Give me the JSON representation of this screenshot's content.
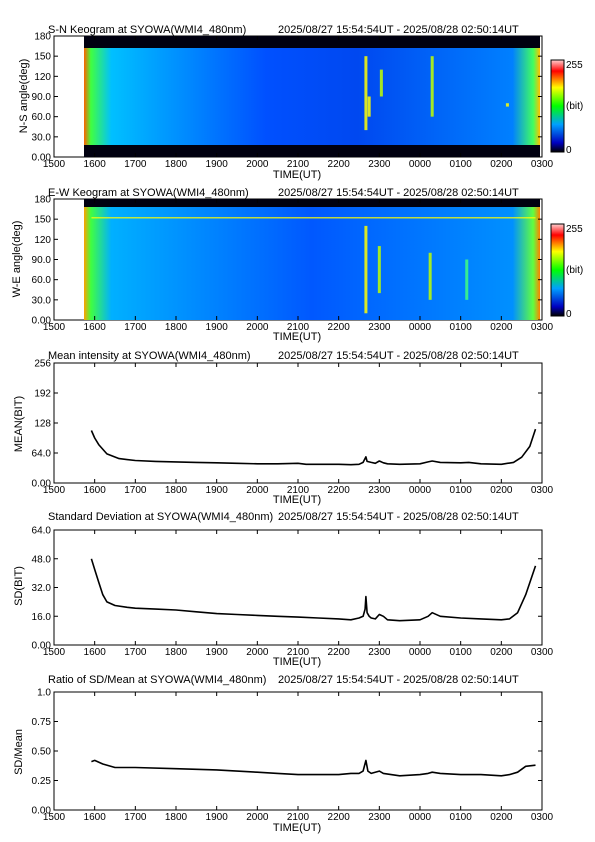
{
  "page": {
    "time_range": "2025/08/27 15:54:54UT - 2025/08/28 02:50:14UT",
    "colors": {
      "axis": "#000000",
      "line": "#000000",
      "keo_background": "#0030e0",
      "keo_dark": "#000010"
    }
  },
  "x_axis": {
    "ticks": [
      "1500",
      "1600",
      "1700",
      "1800",
      "1900",
      "2000",
      "2100",
      "2200",
      "2300",
      "0000",
      "0100",
      "0200",
      "0300"
    ],
    "label": "TIME(UT)"
  },
  "colorbar": {
    "max_label": "255",
    "unit_label": "(bit)",
    "min_label": "0"
  },
  "chart_data": [
    {
      "id": "sn",
      "type": "heatmap",
      "title": "S-N Keogram at SYOWA(WMI4_480nm)",
      "ylabel": "N-S angle(deg)",
      "yticks": [
        "0.00",
        "30.0",
        "60.0",
        "90.0",
        "120",
        "150",
        "180"
      ],
      "ylim": [
        0,
        180
      ],
      "colorscale": [
        "#000080",
        "#0000ff",
        "#00a0ff",
        "#00ff00",
        "#ffff00",
        "#ff0000",
        "#ffffff"
      ],
      "background_level": 0.3,
      "features": [
        {
          "x": 22.67,
          "y0": 40,
          "y1": 150,
          "level": 0.75
        },
        {
          "x": 22.75,
          "y0": 60,
          "y1": 90,
          "level": 0.85
        },
        {
          "x": 23.05,
          "y0": 90,
          "y1": 130,
          "level": 0.65
        },
        {
          "x": 24.3,
          "y0": 60,
          "y1": 150,
          "level": 0.6
        },
        {
          "x": 26.15,
          "y0": 75,
          "y1": 80,
          "level": 0.8
        }
      ]
    },
    {
      "id": "ew",
      "type": "heatmap",
      "title": "E-W Keogram at SYOWA(WMI4_480nm)",
      "ylabel": "W-E angle(deg)",
      "yticks": [
        "0.00",
        "30.0",
        "60.0",
        "90.0",
        "120",
        "150",
        "180"
      ],
      "ylim": [
        0,
        180
      ],
      "colorscale": [
        "#000080",
        "#0000ff",
        "#00a0ff",
        "#00ff00",
        "#ffff00",
        "#ff0000",
        "#ffffff"
      ],
      "background_level": 0.35,
      "features": [
        {
          "x": 22.67,
          "y0": 10,
          "y1": 140,
          "level": 0.8
        },
        {
          "x": 23.0,
          "y0": 40,
          "y1": 110,
          "level": 0.65
        },
        {
          "x": 24.25,
          "y0": 30,
          "y1": 100,
          "level": 0.6
        },
        {
          "x": 25.15,
          "y0": 30,
          "y1": 90,
          "level": 0.55
        },
        {
          "x": 16.0,
          "y0": 152,
          "y1": 154,
          "level": 0.85
        }
      ]
    },
    {
      "id": "mean",
      "type": "line",
      "title": "Mean intensity at SYOWA(WMI4_480nm)",
      "ylabel": "MEAN(BIT)",
      "yticks": [
        "0.00",
        "64.0",
        "128",
        "192",
        "256"
      ],
      "ylim": [
        0,
        256
      ],
      "x": [
        15.92,
        16.0,
        16.1,
        16.3,
        16.6,
        17.0,
        17.5,
        18.0,
        18.5,
        19.0,
        19.5,
        20.0,
        20.5,
        21.0,
        21.2,
        21.5,
        22.0,
        22.3,
        22.5,
        22.6,
        22.67,
        22.7,
        22.8,
        22.9,
        23.0,
        23.1,
        23.2,
        23.5,
        24.0,
        24.2,
        24.3,
        24.5,
        25.0,
        25.2,
        25.5,
        26.0,
        26.3,
        26.5,
        26.7,
        26.84
      ],
      "y": [
        112,
        96,
        82,
        62,
        52,
        48,
        46,
        45,
        44,
        43,
        42,
        41,
        41,
        42,
        40,
        40,
        40,
        39,
        40,
        44,
        56,
        46,
        44,
        42,
        47,
        43,
        41,
        40,
        41,
        45,
        47,
        44,
        43,
        44,
        41,
        40,
        44,
        55,
        78,
        115
      ]
    },
    {
      "id": "sd",
      "type": "line",
      "title": "Standard Deviation at SYOWA(WMI4_480nm)",
      "ylabel": "SD(BIT)",
      "yticks": [
        "0.00",
        "16.0",
        "32.0",
        "48.0",
        "64.0"
      ],
      "ylim": [
        0,
        64
      ],
      "x": [
        15.92,
        16.0,
        16.1,
        16.2,
        16.3,
        16.5,
        16.8,
        17.0,
        17.5,
        18.0,
        18.5,
        19.0,
        19.5,
        20.0,
        20.5,
        21.0,
        21.5,
        22.0,
        22.3,
        22.5,
        22.6,
        22.65,
        22.67,
        22.7,
        22.75,
        22.8,
        22.9,
        23.0,
        23.1,
        23.2,
        23.5,
        24.0,
        24.2,
        24.3,
        24.5,
        25.0,
        25.5,
        26.0,
        26.2,
        26.4,
        26.6,
        26.84
      ],
      "y": [
        48,
        42,
        35,
        28,
        24,
        22,
        21,
        20.5,
        20,
        19.5,
        18.5,
        17.5,
        17,
        16.5,
        16,
        15.5,
        15,
        14.5,
        14,
        15,
        16,
        20,
        27,
        18,
        16,
        15,
        14.5,
        17,
        16,
        14,
        13.5,
        14,
        16,
        18,
        16,
        15,
        14.5,
        14,
        14.5,
        18,
        28,
        44
      ]
    },
    {
      "id": "ratio",
      "type": "line",
      "title": "Ratio of SD/Mean at SYOWA(WMI4_480nm)",
      "ylabel": "SD/Mean",
      "yticks": [
        "0.00",
        "0.25",
        "0.50",
        "0.75",
        "1.0"
      ],
      "ylim": [
        0,
        1
      ],
      "x": [
        15.92,
        16.0,
        16.2,
        16.5,
        17.0,
        18.0,
        19.0,
        19.5,
        20.0,
        20.5,
        21.0,
        21.5,
        22.0,
        22.3,
        22.5,
        22.6,
        22.67,
        22.72,
        22.8,
        23.0,
        23.1,
        23.5,
        24.0,
        24.2,
        24.3,
        24.5,
        25.0,
        25.5,
        26.0,
        26.2,
        26.4,
        26.6,
        26.84
      ],
      "y": [
        0.41,
        0.42,
        0.39,
        0.36,
        0.36,
        0.35,
        0.34,
        0.33,
        0.32,
        0.31,
        0.3,
        0.3,
        0.3,
        0.31,
        0.31,
        0.33,
        0.42,
        0.33,
        0.31,
        0.33,
        0.31,
        0.29,
        0.3,
        0.31,
        0.32,
        0.31,
        0.3,
        0.3,
        0.29,
        0.3,
        0.32,
        0.37,
        0.38
      ]
    }
  ]
}
